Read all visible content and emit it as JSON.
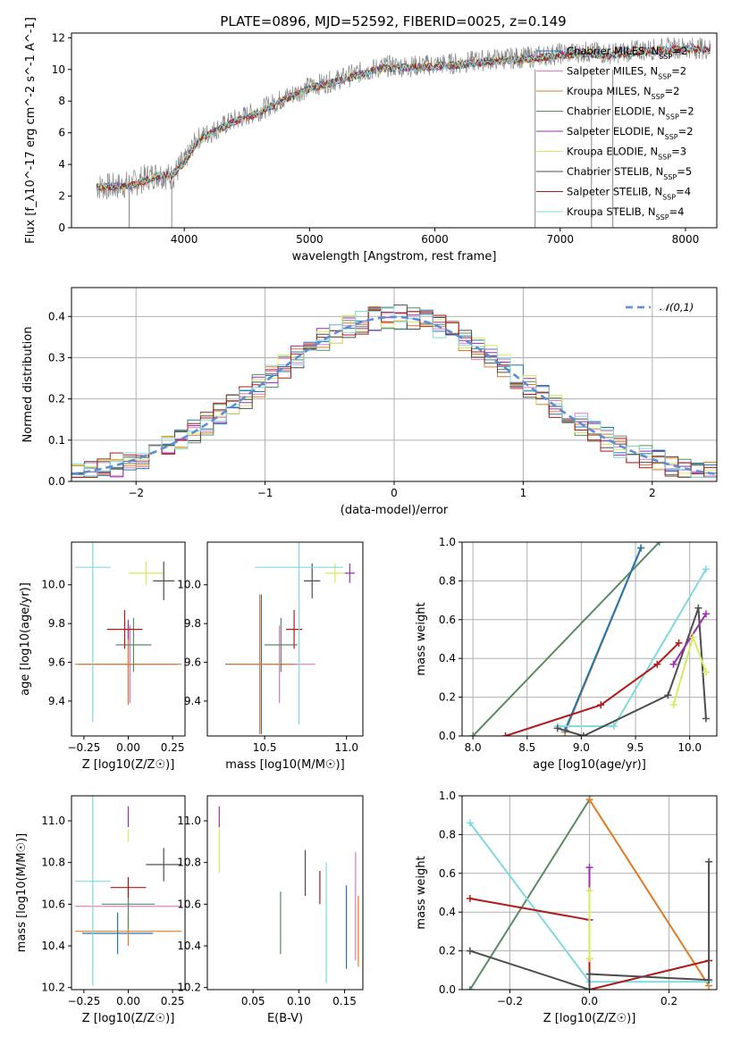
{
  "figure": {
    "title": "PLATE=0896, MJD=52592, FIBERID=0025, z=0.149"
  },
  "series_styles": [
    {
      "name": "Chabrier MILES",
      "nssp": "2",
      "color": "#1f77b4"
    },
    {
      "name": "Salpeter MILES",
      "nssp": "2",
      "color": "#e377c2"
    },
    {
      "name": "Kroupa MILES",
      "nssp": "2",
      "color": "#e07b24"
    },
    {
      "name": "Chabrier ELODIE",
      "nssp": "2",
      "color": "#5a8a66"
    },
    {
      "name": "Salpeter ELODIE",
      "nssp": "2",
      "color": "#9b2fae"
    },
    {
      "name": "Kroupa ELODIE",
      "nssp": "3",
      "color": "#d4ec5a"
    },
    {
      "name": "Chabrier STELIB",
      "nssp": "5",
      "color": "#4d4d4d"
    },
    {
      "name": "Salpeter STELIB",
      "nssp": "4",
      "color": "#b01a1a"
    },
    {
      "name": "Kroupa STELIB",
      "nssp": "4",
      "color": "#80d8e0"
    }
  ],
  "chart_data": [
    {
      "id": "spectrum",
      "type": "line",
      "title": "PLATE=0896, MJD=52592, FIBERID=0025, z=0.149",
      "xlabel": "wavelength [Angstrom, rest frame]",
      "ylabel": "Flux [f_λ10^-17 erg cm^-2 s^-1 A^-1]",
      "xlim": [
        3100,
        8250
      ],
      "ylim": [
        0,
        12.3
      ],
      "xticks": [
        4000,
        5000,
        6000,
        7000,
        8000
      ],
      "yticks": [
        0,
        2,
        4,
        6,
        8,
        10,
        12
      ],
      "data_color": "#888888",
      "data_x": [
        3300,
        3450,
        3600,
        3700,
        3800,
        3900,
        4000,
        4100,
        4200,
        4400,
        4600,
        4800,
        5000,
        5200,
        5400,
        5600,
        5800,
        6000,
        6200,
        6400,
        6600,
        6800,
        7000,
        7200,
        7400,
        7600,
        7800,
        8000,
        8200
      ],
      "data_y": [
        2.6,
        2.6,
        2.8,
        3.2,
        3.4,
        3.2,
        4.2,
        5.6,
        6.0,
        6.8,
        7.4,
        8.2,
        8.9,
        9.3,
        9.8,
        10.2,
        10.2,
        10.3,
        10.4,
        10.6,
        10.7,
        10.8,
        11.0,
        11.1,
        11.0,
        11.2,
        11.3,
        11.4,
        11.3
      ],
      "model_x": [
        3300,
        3450,
        3600,
        3700,
        3800,
        3900,
        4000,
        4100,
        4200,
        4400,
        4600,
        4800,
        5000,
        5200,
        5400,
        5600,
        5800,
        6000,
        6200,
        6400,
        6600,
        6800,
        7000,
        7200,
        7400,
        7600,
        7800,
        8000,
        8200
      ],
      "model_y": [
        2.6,
        2.6,
        2.7,
        3.0,
        3.3,
        3.3,
        4.1,
        5.4,
        5.9,
        6.7,
        7.3,
        8.1,
        8.8,
        9.2,
        9.7,
        10.1,
        10.1,
        10.2,
        10.3,
        10.5,
        10.6,
        10.7,
        10.9,
        11.0,
        10.9,
        11.1,
        11.2,
        11.3,
        11.2
      ],
      "legend_position": "upper right"
    },
    {
      "id": "residual-histogram",
      "type": "line",
      "xlabel": "(data-model)/error",
      "ylabel": "Normed distribution",
      "xlim": [
        -2.5,
        2.5
      ],
      "ylim": [
        0,
        0.47
      ],
      "xticks": [
        -2,
        -1,
        0,
        1,
        2
      ],
      "yticks": [
        0.0,
        0.1,
        0.2,
        0.3,
        0.4
      ],
      "grid": true,
      "reference_curve": {
        "name": "𝒩(0,1)",
        "color": "#5b8ed6",
        "style": "dashed"
      },
      "bins": [
        -2.5,
        -2.4,
        -2.3,
        -2.2,
        -2.1,
        -2.0,
        -1.9,
        -1.8,
        -1.7,
        -1.6,
        -1.5,
        -1.4,
        -1.3,
        -1.2,
        -1.1,
        -1.0,
        -0.9,
        -0.8,
        -0.7,
        -0.6,
        -0.5,
        -0.4,
        -0.3,
        -0.2,
        -0.1,
        0.0,
        0.1,
        0.2,
        0.3,
        0.4,
        0.5,
        0.6,
        0.7,
        0.8,
        0.9,
        1.0,
        1.1,
        1.2,
        1.3,
        1.4,
        1.5,
        1.6,
        1.7,
        1.8,
        1.9,
        2.0,
        2.1,
        2.2,
        2.3,
        2.4,
        2.5
      ],
      "legend_position": "upper right"
    },
    {
      "id": "age-vs-Z",
      "type": "scatter",
      "xlabel": "Z [log10(Z/Z☉)]",
      "ylabel": "age [log10(age/yr)]",
      "xlim": [
        -0.32,
        0.32
      ],
      "ylim": [
        9.22,
        10.22
      ],
      "xticks": [
        -0.25,
        0.0,
        0.25
      ],
      "yticks": [
        9.4,
        9.6,
        9.8,
        10.0
      ],
      "points": [
        {
          "x": 0.0,
          "y": 9.59,
          "xerr": 0.28,
          "yerr": 0.2,
          "color": "#1f77b4"
        },
        {
          "x": 0.01,
          "y": 9.59,
          "xerr": 0.27,
          "yerr": 0.2,
          "color": "#e377c2"
        },
        {
          "x": 0.0,
          "y": 9.59,
          "xerr": 0.3,
          "yerr": 0.21,
          "color": "#e07b24"
        },
        {
          "x": 0.03,
          "y": 9.69,
          "xerr": 0.1,
          "yerr": 0.14,
          "color": "#5a8a66"
        },
        {
          "x": 0.0,
          "y": 9.77,
          "xerr": 0.0,
          "yerr": 0.05,
          "color": "#9b2fae"
        },
        {
          "x": 0.1,
          "y": 10.06,
          "xerr": 0.1,
          "yerr": 0.06,
          "color": "#d4ec5a"
        },
        {
          "x": 0.2,
          "y": 10.02,
          "xerr": 0.06,
          "yerr": 0.1,
          "color": "#4d4d4d"
        },
        {
          "x": -0.02,
          "y": 9.77,
          "xerr": 0.1,
          "yerr": 0.1,
          "color": "#b01a1a"
        },
        {
          "x": -0.2,
          "y": 10.09,
          "xerr": 0.1,
          "yerr": 0.8,
          "color": "#80d8e0"
        }
      ]
    },
    {
      "id": "age-vs-mass",
      "type": "scatter",
      "xlabel": "mass [log10(M/M☉)]",
      "ylabel": "",
      "xlim": [
        10.15,
        11.1
      ],
      "ylim": [
        9.22,
        10.22
      ],
      "xticks": [
        10.5,
        11.0
      ],
      "yticks": [
        9.4,
        9.6,
        9.8,
        10.0
      ],
      "points": [
        {
          "x": 10.48,
          "y": 9.59,
          "xerr": 0.22,
          "yerr": 0.36,
          "color": "#1f77b4"
        },
        {
          "x": 10.59,
          "y": 9.59,
          "xerr": 0.22,
          "yerr": 0.2,
          "color": "#e377c2"
        },
        {
          "x": 10.47,
          "y": 9.59,
          "xerr": 0.2,
          "yerr": 0.36,
          "color": "#e07b24"
        },
        {
          "x": 10.6,
          "y": 9.69,
          "xerr": 0.1,
          "yerr": 0.14,
          "color": "#5a8a66"
        },
        {
          "x": 11.02,
          "y": 10.06,
          "xerr": 0.03,
          "yerr": 0.05,
          "color": "#9b2fae"
        },
        {
          "x": 10.93,
          "y": 10.06,
          "xerr": 0.06,
          "yerr": 0.05,
          "color": "#d4ec5a"
        },
        {
          "x": 10.79,
          "y": 10.02,
          "xerr": 0.05,
          "yerr": 0.09,
          "color": "#4d4d4d"
        },
        {
          "x": 10.68,
          "y": 9.77,
          "xerr": 0.05,
          "yerr": 0.1,
          "color": "#b01a1a"
        },
        {
          "x": 10.71,
          "y": 10.09,
          "xerr": 0.27,
          "yerr": 0.81,
          "color": "#80d8e0"
        }
      ]
    },
    {
      "id": "massweight-vs-age",
      "type": "line",
      "xlabel": "age [log10(age/yr)]",
      "ylabel": "mass weight",
      "xlim": [
        7.9,
        10.25
      ],
      "ylim": [
        0,
        1.0
      ],
      "xticks": [
        8.0,
        8.5,
        9.0,
        9.5,
        10.0
      ],
      "yticks": [
        0.0,
        0.2,
        0.4,
        0.6,
        0.8,
        1.0
      ],
      "grid": true,
      "series": [
        {
          "color": "#5a8a66",
          "x": [
            8.0,
            9.72
          ],
          "y": [
            0.0,
            1.0
          ]
        },
        {
          "color": "#e07b24",
          "x": [
            8.85,
            9.55
          ],
          "y": [
            0.02,
            0.97
          ]
        },
        {
          "color": "#1f77b4",
          "x": [
            8.85,
            9.55
          ],
          "y": [
            0.03,
            0.97
          ]
        },
        {
          "color": "#80d8e0",
          "x": [
            8.78,
            9.3,
            10.15
          ],
          "y": [
            0.05,
            0.05,
            0.86
          ]
        },
        {
          "color": "#b01a1a",
          "x": [
            8.3,
            9.18,
            9.7,
            9.9
          ],
          "y": [
            0.0,
            0.16,
            0.37,
            0.48
          ]
        },
        {
          "color": "#4d4d4d",
          "x": [
            8.78,
            9.02,
            9.8,
            10.08,
            10.15
          ],
          "y": [
            0.04,
            0.0,
            0.21,
            0.66,
            0.09
          ]
        },
        {
          "color": "#9b2fae",
          "x": [
            9.85,
            10.15
          ],
          "y": [
            0.37,
            0.63
          ]
        },
        {
          "color": "#d4ec5a",
          "x": [
            9.85,
            10.03,
            10.15
          ],
          "y": [
            0.16,
            0.51,
            0.33
          ]
        }
      ]
    },
    {
      "id": "mass-vs-Z",
      "type": "scatter",
      "xlabel": "Z [log10(Z/Z☉)]",
      "ylabel": "mass [log10(M/M☉)]",
      "xlim": [
        -0.32,
        0.32
      ],
      "ylim": [
        10.19,
        11.12
      ],
      "xticks": [
        -0.25,
        0.0,
        0.25
      ],
      "yticks": [
        10.2,
        10.4,
        10.6,
        10.8,
        11.0
      ],
      "points": [
        {
          "x": -0.06,
          "y": 10.46,
          "xerr": 0.2,
          "yerr": 0.1,
          "color": "#1f77b4"
        },
        {
          "x": 0.0,
          "y": 10.59,
          "xerr": 0.3,
          "yerr": 0.1,
          "color": "#e377c2"
        },
        {
          "x": 0.0,
          "y": 10.47,
          "xerr": 0.3,
          "yerr": 0.07,
          "color": "#e07b24"
        },
        {
          "x": 0.0,
          "y": 10.6,
          "xerr": 0.15,
          "yerr": 0.12,
          "color": "#5a8a66"
        },
        {
          "x": 0.0,
          "y": 11.02,
          "xerr": 0.0,
          "yerr": 0.05,
          "color": "#9b2fae"
        },
        {
          "x": 0.0,
          "y": 10.93,
          "xerr": 0.0,
          "yerr": 0.03,
          "color": "#d4ec5a"
        },
        {
          "x": 0.2,
          "y": 10.79,
          "xerr": 0.1,
          "yerr": 0.08,
          "color": "#4d4d4d"
        },
        {
          "x": 0.0,
          "y": 10.68,
          "xerr": 0.1,
          "yerr": 0.05,
          "color": "#b01a1a"
        },
        {
          "x": -0.2,
          "y": 10.71,
          "xerr": 0.1,
          "yerr": 0.5,
          "color": "#80d8e0"
        }
      ]
    },
    {
      "id": "mass-vs-EBV",
      "type": "scatter",
      "xlabel": "E(B-V)",
      "ylabel": "",
      "xlim": [
        0.0,
        0.17
      ],
      "ylim": [
        10.19,
        11.12
      ],
      "xticks": [
        0.05,
        0.1,
        0.15
      ],
      "yticks": [
        10.2,
        10.4,
        10.6,
        10.8,
        11.0
      ],
      "points": [
        {
          "x": 0.152,
          "y": 10.49,
          "yerr": 0.2,
          "color": "#1f77b4"
        },
        {
          "x": 0.162,
          "y": 10.59,
          "yerr": 0.26,
          "color": "#e377c2"
        },
        {
          "x": 0.165,
          "y": 10.47,
          "yerr": 0.17,
          "color": "#e07b24"
        },
        {
          "x": 0.08,
          "y": 10.51,
          "yerr": 0.15,
          "color": "#5a8a66"
        },
        {
          "x": 0.013,
          "y": 11.02,
          "yerr": 0.05,
          "color": "#9b2fae"
        },
        {
          "x": 0.013,
          "y": 10.86,
          "yerr": 0.11,
          "color": "#d4ec5a"
        },
        {
          "x": 0.107,
          "y": 10.75,
          "yerr": 0.11,
          "color": "#4d4d4d"
        },
        {
          "x": 0.123,
          "y": 10.68,
          "yerr": 0.08,
          "color": "#b01a1a"
        },
        {
          "x": 0.13,
          "y": 10.51,
          "yerr": 0.29,
          "color": "#80d8e0"
        }
      ]
    },
    {
      "id": "massweight-vs-Z",
      "type": "line",
      "xlabel": "Z [log10(Z/Z☉)]",
      "ylabel": "mass weight",
      "xlim": [
        -0.32,
        0.32
      ],
      "ylim": [
        0,
        1.0
      ],
      "xticks": [
        -0.2,
        0.0,
        0.2
      ],
      "yticks": [
        0.0,
        0.2,
        0.4,
        0.6,
        0.8,
        1.0
      ],
      "grid": true,
      "series": [
        {
          "color": "#5a8a66",
          "x": [
            -0.3,
            0.0
          ],
          "y": [
            0.0,
            0.98
          ]
        },
        {
          "color": "#e07b24",
          "x": [
            0.0,
            0.3
          ],
          "y": [
            0.98,
            0.02
          ]
        },
        {
          "color": "#80d8e0",
          "x": [
            -0.3,
            0.0,
            0.3
          ],
          "y": [
            0.86,
            0.04,
            0.04
          ]
        },
        {
          "color": "#b01a1a",
          "x": [
            -0.3,
            0.0,
            0.0,
            0.3
          ],
          "y": [
            0.47,
            0.36,
            0.0,
            0.15
          ]
        },
        {
          "color": "#4d4d4d",
          "x": [
            -0.3,
            0.0,
            0.0,
            0.3,
            0.3
          ],
          "y": [
            0.2,
            0.0,
            0.08,
            0.05,
            0.66
          ]
        },
        {
          "color": "#9b2fae",
          "x": [
            0.0,
            0.0
          ],
          "y": [
            0.36,
            0.63
          ]
        },
        {
          "color": "#d4ec5a",
          "x": [
            0.0,
            0.0
          ],
          "y": [
            0.16,
            0.51
          ]
        }
      ]
    }
  ]
}
